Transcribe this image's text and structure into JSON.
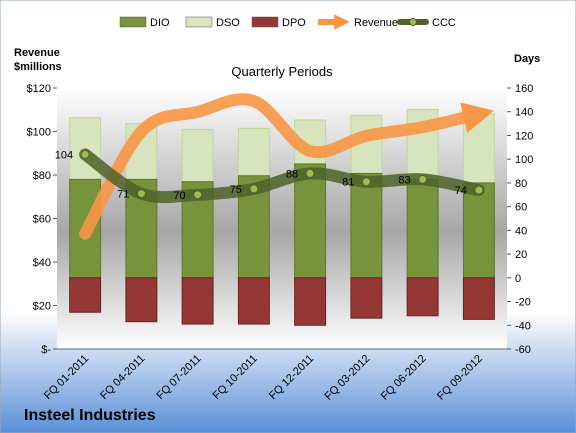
{
  "chart_data": {
    "type": "bar",
    "title": "Quarterly Periods",
    "company": "Insteel Industries",
    "y_left_label_line1": "Revenue",
    "y_left_label_line2": "$millions",
    "y_right_label": "Days",
    "categories": [
      "FQ 01-2011",
      "FQ 04-2011",
      "FQ 07-2011",
      "FQ 10-2011",
      "FQ 12-2011",
      "FQ 03-2012",
      "FQ 06-2012",
      "FQ 09-2012"
    ],
    "y_left_ticks": [
      "$-",
      "$20",
      "$40",
      "$60",
      "$80",
      "$100",
      "$120"
    ],
    "y_left_lim": [
      0,
      120
    ],
    "y_right_ticks": [
      "-60",
      "-40",
      "-20",
      "0",
      "20",
      "40",
      "60",
      "80",
      "100",
      "120",
      "140",
      "160"
    ],
    "y_right_lim": [
      -60,
      160
    ],
    "legend_position": "top",
    "series": [
      {
        "name": "DIO",
        "axis": "right",
        "kind": "stacked-bar",
        "color": "#77933c",
        "values": [
          83,
          83,
          81,
          86,
          96,
          88,
          83,
          80
        ]
      },
      {
        "name": "DSO",
        "axis": "right",
        "kind": "stacked-bar",
        "color": "#d7e4bd",
        "values": [
          52,
          47,
          44,
          40,
          37,
          49,
          59,
          58
        ]
      },
      {
        "name": "DPO",
        "axis": "right",
        "kind": "negative-bar",
        "color": "#953735",
        "values": [
          -29,
          -37,
          -39,
          -39,
          -40,
          -34,
          -32,
          -35
        ]
      },
      {
        "name": "Revenue",
        "axis": "left",
        "kind": "line",
        "color": "#f79646",
        "values": [
          53,
          100,
          109,
          114,
          91,
          98,
          102,
          108
        ]
      },
      {
        "name": "CCC",
        "axis": "right",
        "kind": "line",
        "color": "#4f6228",
        "values": [
          104,
          71,
          70,
          75,
          88,
          81,
          83,
          74
        ]
      }
    ],
    "ccc_labels": [
      "104",
      "71",
      "70",
      "75",
      "88",
      "81",
      "83",
      "74"
    ]
  }
}
